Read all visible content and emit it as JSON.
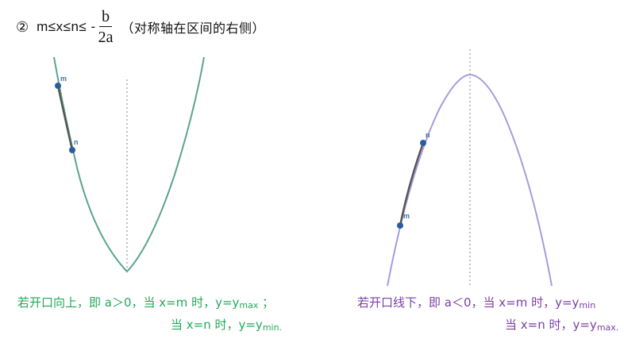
{
  "header": {
    "number": "②",
    "condition": "m≤x≤n≤ -",
    "fraction_numerator": "b",
    "fraction_denominator": "2a",
    "note": "（对称轴在区间的右侧）"
  },
  "left_graph": {
    "point_m_label": "m",
    "point_n_label": "n",
    "curve_color": "#5aa58a",
    "segment_color": "#555555"
  },
  "right_graph": {
    "point_m_label": "m",
    "point_n_label": "n",
    "curve_color": "#a99ae0",
    "segment_color": "#555555"
  },
  "captions": {
    "left_line1_prefix": "若开口向上，即 a＞0，当 x=m 时，y=y",
    "left_line1_sub": "max",
    "left_line1_suffix": "  ；",
    "left_line2_prefix": "当 x=n 时，y=y",
    "left_line2_sub": "min.",
    "right_line1_prefix": "若开口线下，即 a＜0，当 x=m 时，y=y",
    "right_line1_sub": "min",
    "right_line2_prefix": "当 x=n 时，y=y",
    "right_line2_sub": "max."
  },
  "colors": {
    "green_text": "#22a85a",
    "purple_text": "#7b3fa6",
    "point_fill": "#2b5d9e"
  }
}
